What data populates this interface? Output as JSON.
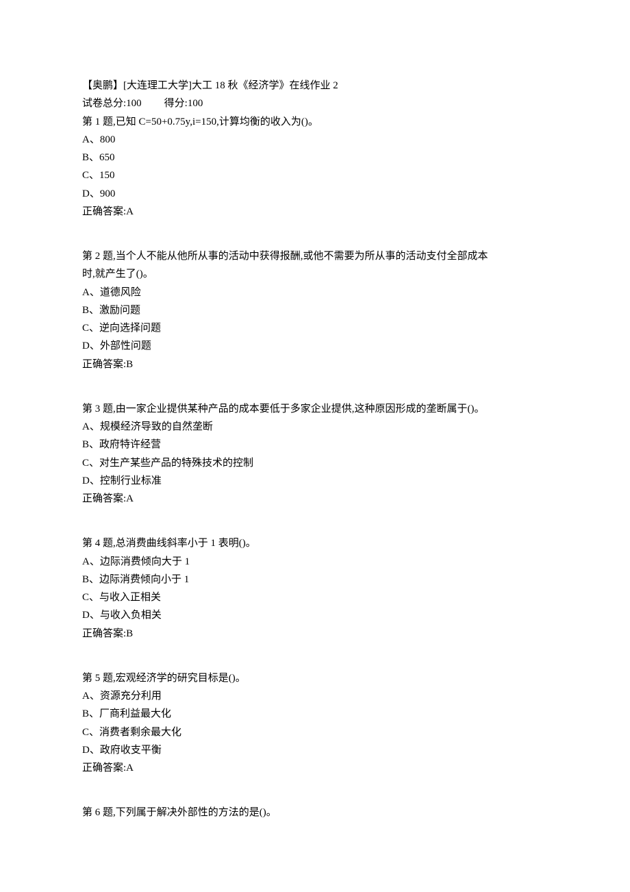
{
  "header": {
    "title": "【奥鹏】[大连理工大学]大工 18 秋《经济学》在线作业 2",
    "total_label": "试卷总分:",
    "total_value": "100",
    "score_label": "得分:",
    "score_value": "100"
  },
  "questions": [
    {
      "stem": "第 1 题,已知 C=50+0.75y,i=150,计算均衡的收入为()。",
      "options": [
        "A、800",
        "B、650",
        "C、150",
        "D、900"
      ],
      "answer": "正确答案:A"
    },
    {
      "stem_lines": [
        "第 2 题,当个人不能从他所从事的活动中获得报酬,或他不需要为所从事的活动支付全部成本",
        "时,就产生了()。"
      ],
      "options": [
        "A、道德风险",
        "B、激励问题",
        "C、逆向选择问题",
        "D、外部性问题"
      ],
      "answer": "正确答案:B"
    },
    {
      "stem": "第 3 题,由一家企业提供某种产品的成本要低于多家企业提供,这种原因形成的垄断属于()。",
      "options": [
        "A、规模经济导致的自然垄断",
        "B、政府特许经营",
        "C、对生产某些产品的特殊技术的控制",
        "D、控制行业标准"
      ],
      "answer": "正确答案:A"
    },
    {
      "stem": "第 4 题,总消费曲线斜率小于 1 表明()。",
      "options": [
        "A、边际消费倾向大于 1",
        "B、边际消费倾向小于 1",
        "C、与收入正相关",
        "D、与收入负相关"
      ],
      "answer": "正确答案:B"
    },
    {
      "stem": "第 5 题,宏观经济学的研究目标是()。",
      "options": [
        "A、资源充分利用",
        "B、厂商利益最大化",
        "C、消费者剩余最大化",
        "D、政府收支平衡"
      ],
      "answer": "正确答案:A"
    },
    {
      "stem": "第 6 题,下列属于解决外部性的方法的是()。"
    }
  ]
}
